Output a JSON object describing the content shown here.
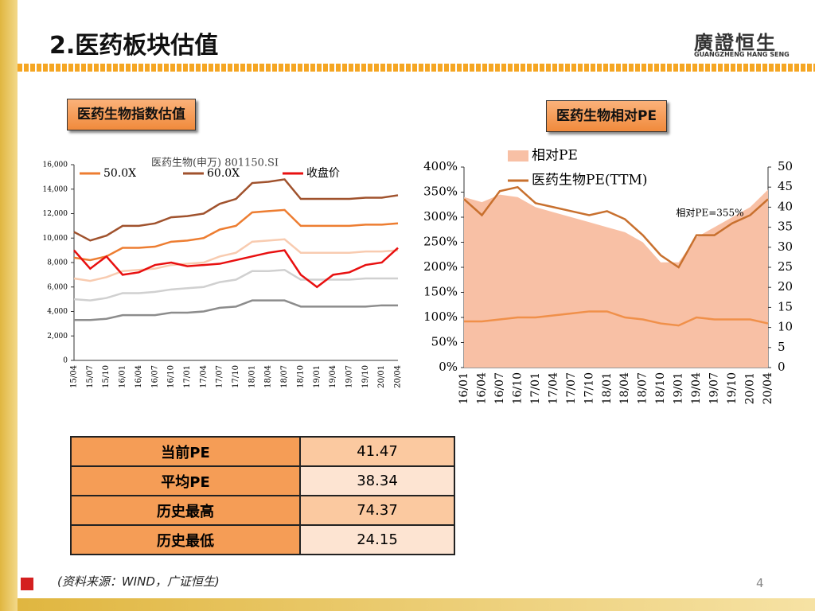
{
  "header": {
    "title": "2.医药板块估值",
    "logo": "廣證恒生",
    "logo_sub": "GUANGZHENG HANG SENG"
  },
  "sections": [
    "医药生物指数估值",
    "医药生物相对PE"
  ],
  "chart_data": [
    {
      "type": "line",
      "title": "医药生物(申万) 801150.SI",
      "categories": [
        "15/04",
        "15/07",
        "15/10",
        "16/01",
        "16/04",
        "16/07",
        "16/10",
        "17/01",
        "17/04",
        "17/07",
        "17/10",
        "18/01",
        "18/04",
        "18/07",
        "18/10",
        "19/01",
        "19/04",
        "19/07",
        "19/10",
        "20/01",
        "20/04"
      ],
      "ylim": [
        0,
        16000
      ],
      "yticks": [
        0,
        {
          "value": 2000,
          "label": "2,000"
        },
        {
          "value": 4000,
          "label": "4,000"
        },
        {
          "value": 6000,
          "label": "6,000"
        },
        {
          "value": 8000,
          "label": "8,000"
        },
        {
          "value": 10000,
          "label": "10,000"
        },
        {
          "value": 12000,
          "label": "12,000"
        },
        {
          "value": 14000,
          "label": "14,000"
        },
        {
          "value": 16000,
          "label": "16,000"
        }
      ],
      "series": [
        {
          "color": "#8c8c8c",
          "values": [
            3300,
            3300,
            3400,
            3700,
            3700,
            3700,
            3900,
            3900,
            4000,
            4300,
            4400,
            4900,
            4900,
            4900,
            4400,
            4400,
            4400,
            4400,
            4400,
            4500,
            4500
          ]
        },
        {
          "color": "#d0d0d0",
          "values": [
            5000,
            4900,
            5100,
            5500,
            5500,
            5600,
            5800,
            5900,
            6000,
            6400,
            6600,
            7300,
            7300,
            7400,
            6600,
            6600,
            6600,
            6600,
            6700,
            6700,
            6700
          ]
        },
        {
          "color": "#f8cbb0",
          "values": [
            6700,
            6500,
            6800,
            7300,
            7400,
            7500,
            7800,
            7900,
            8000,
            8500,
            8800,
            9700,
            9800,
            9900,
            8800,
            8800,
            8800,
            8800,
            8900,
            8900,
            9000
          ]
        },
        {
          "name": "50.0X",
          "color": "#ed7d31",
          "values": [
            8400,
            8200,
            8500,
            9200,
            9200,
            9300,
            9700,
            9800,
            10000,
            10700,
            11000,
            12100,
            12200,
            12300,
            11000,
            11000,
            11000,
            11000,
            11100,
            11100,
            11200
          ]
        },
        {
          "name": "60.0X",
          "color": "#a0522d",
          "values": [
            10500,
            9800,
            10200,
            11000,
            11000,
            11200,
            11700,
            11800,
            12000,
            12800,
            13200,
            14500,
            14600,
            14800,
            13200,
            13200,
            13200,
            13200,
            13300,
            13300,
            13500
          ]
        },
        {
          "name": "收盘价",
          "color": "#e81010",
          "values": [
            9000,
            7500,
            8500,
            7000,
            7200,
            7800,
            8000,
            7700,
            7800,
            7900,
            8200,
            8500,
            8800,
            9000,
            7000,
            6000,
            7000,
            7200,
            7800,
            8000,
            9200
          ]
        }
      ]
    },
    {
      "type": "line",
      "annotation": "相对PE=355%",
      "categories": [
        "16/01",
        "16/04",
        "16/07",
        "16/10",
        "17/01",
        "17/04",
        "17/07",
        "17/10",
        "18/01",
        "18/04",
        "18/07",
        "18/10",
        "19/01",
        "19/04",
        "19/07",
        "19/10",
        "20/01",
        "20/04"
      ],
      "ylim": [
        0,
        400
      ],
      "yticks": [
        {
          "value": 0,
          "label": "0%"
        },
        {
          "value": 50,
          "label": "50%"
        },
        {
          "value": 100,
          "label": "100%"
        },
        {
          "value": 150,
          "label": "150%"
        },
        {
          "value": 200,
          "label": "200%"
        },
        {
          "value": 250,
          "label": "250%"
        },
        {
          "value": 300,
          "label": "300%"
        },
        {
          "value": 350,
          "label": "350%"
        },
        {
          "value": 400,
          "label": "400%"
        }
      ],
      "y2lim": [
        0,
        50
      ],
      "y2ticks": [
        0,
        5,
        10,
        15,
        20,
        25,
        30,
        35,
        40,
        45,
        50
      ],
      "series": [
        {
          "name": "相对PE",
          "type": "area",
          "color": "#f8c0a5",
          "values": [
            340,
            330,
            345,
            340,
            320,
            310,
            300,
            290,
            280,
            270,
            250,
            210,
            210,
            260,
            280,
            300,
            320,
            355
          ]
        },
        {
          "name": "医药生物PE(TTM)",
          "color": "#c8702e",
          "axis": "y2",
          "values": [
            42,
            38,
            44,
            45,
            41,
            40,
            39,
            38,
            39,
            37,
            33,
            28,
            25,
            33,
            33,
            36,
            38,
            42
          ]
        },
        {
          "color": "#f0904a",
          "axis": "y2",
          "values": [
            11.5,
            11.5,
            12,
            12.5,
            12.5,
            13,
            13.5,
            14,
            14,
            12.5,
            12,
            11,
            10.5,
            12.5,
            12,
            12,
            12,
            11
          ]
        }
      ]
    }
  ],
  "table": {
    "rows": [
      [
        "当前PE",
        "41.47"
      ],
      [
        "平均PE",
        "38.34"
      ],
      [
        "历史最高",
        "74.37"
      ],
      [
        "历史最低",
        "24.15"
      ]
    ]
  },
  "footer": {
    "source": "(资料来源：WIND，广证恒生)",
    "page": "4"
  }
}
